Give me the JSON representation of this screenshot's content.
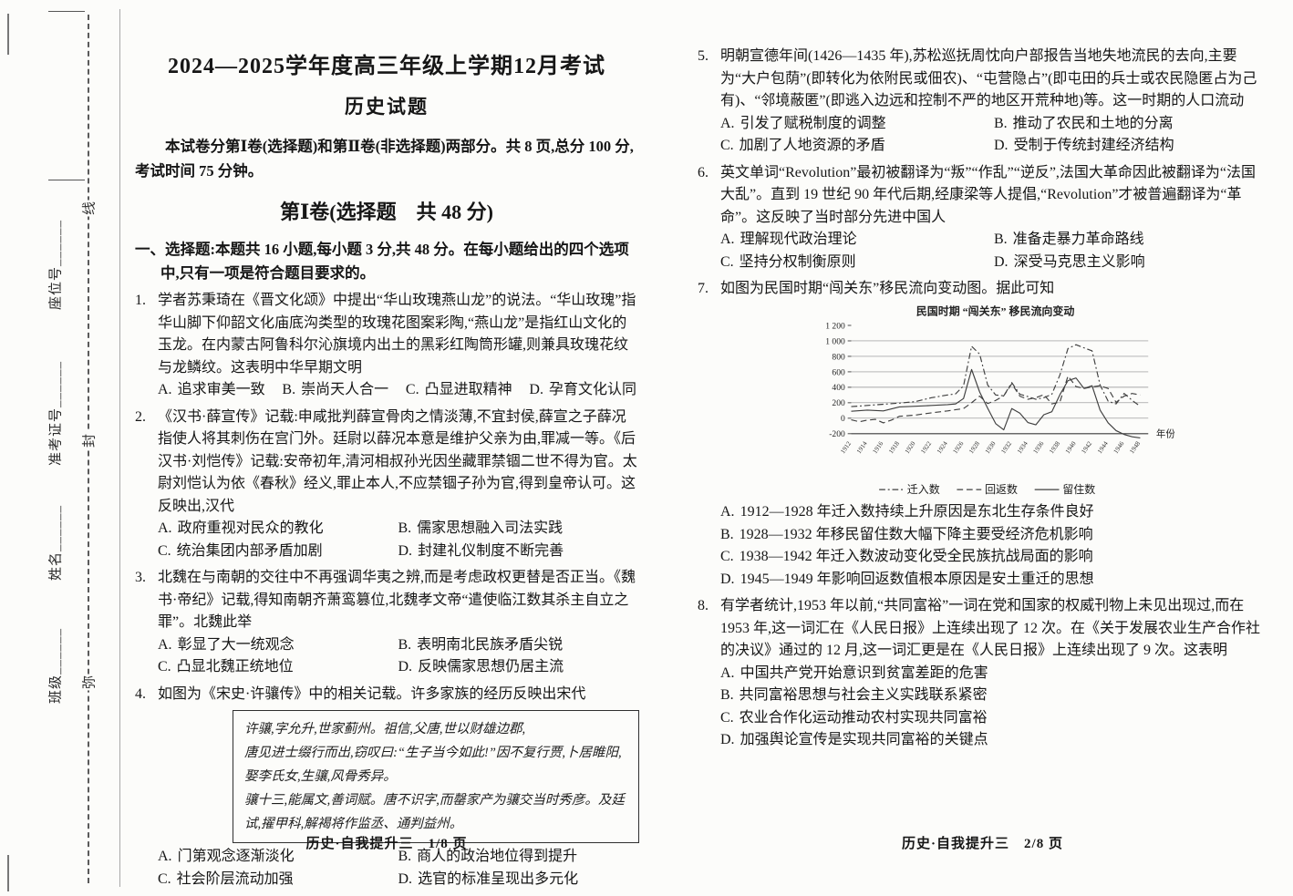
{
  "margin": {
    "seal_chars": [
      "线",
      "封",
      "弥"
    ],
    "fields": [
      "座位号______",
      "准考证号______",
      "姓名______",
      "班级______"
    ]
  },
  "page1": {
    "title_line1": "2024—2025学年度高三年级上学期12月考试",
    "title_line2": "历史试题",
    "intro": "本试卷分第Ⅰ卷(选择题)和第Ⅱ卷(非选择题)两部分。共 8 页,总分 100 分,考试时间 75 分钟。",
    "section_heading": "第Ⅰ卷(选择题　共 48 分)",
    "instructions": "一、选择题:本题共 16 小题,每小题 3 分,共 48 分。在每小题给出的四个选项中,只有一项是符合题目要求的。",
    "questions": [
      {
        "number": "1.",
        "stem": "学者苏秉琦在《晋文化颂》中提出“华山玫瑰燕山龙”的说法。“华山玫瑰”指华山脚下仰韶文化庙底沟类型的玫瑰花图案彩陶,“燕山龙”是指红山文化的玉龙。在内蒙古阿鲁科尔沁旗境内出土的黑彩红陶筒形罐,则兼具玫瑰花纹与龙鳞纹。这表明中华早期文明",
        "options": [
          {
            "label": "A.",
            "text": "追求审美一致"
          },
          {
            "label": "B.",
            "text": "崇尚天人合一"
          },
          {
            "label": "C.",
            "text": "凸显进取精神"
          },
          {
            "label": "D.",
            "text": "孕育文化认同"
          }
        ]
      },
      {
        "number": "2.",
        "stem": "《汉书·薛宣传》记载:申咸批判薛宣骨肉之情淡薄,不宜封侯,薛宣之子薛况指使人将其刺伤在宫门外。廷尉以薛况本意是维护父亲为由,罪减一等。《后汉书·刘恺传》记载:安帝初年,清河相叔孙光因坐藏罪禁锢二世不得为官。太尉刘恺认为依《春秋》经义,罪止本人,不应禁锢子孙为官,得到皇帝认可。这反映出,汉代",
        "options": [
          {
            "label": "A.",
            "text": "政府重视对民众的教化"
          },
          {
            "label": "B.",
            "text": "儒家思想融入司法实践"
          },
          {
            "label": "C.",
            "text": "统治集团内部矛盾加剧"
          },
          {
            "label": "D.",
            "text": "封建礼仪制度不断完善"
          }
        ]
      },
      {
        "number": "3.",
        "stem": "北魏在与南朝的交往中不再强调华夷之辨,而是考虑政权更替是否正当。《魏书·帝纪》记载,得知南朝齐萧鸾篡位,北魏孝文帝“遣使临江数其杀主自立之罪”。北魏此举",
        "options": [
          {
            "label": "A.",
            "text": "彰显了大一统观念"
          },
          {
            "label": "B.",
            "text": "表明南北民族矛盾尖锐"
          },
          {
            "label": "C.",
            "text": "凸显北魏正统地位"
          },
          {
            "label": "D.",
            "text": "反映儒家思想仍居主流"
          }
        ]
      },
      {
        "number": "4.",
        "stem": "如图为《宋史·许骧传》中的相关记载。许多家族的经历反映出宋代",
        "box_lines": [
          "许骧,字允升,世家蓟州。祖信,父唐,世以财雄边郡,",
          "唐见进士缀行而出,窃叹曰:“生子当今如此!”因不复行贾,卜居睢阳,",
          "娶李氏女,生骧,风骨秀异。",
          "骧十三,能属文,善词赋。唐不识字,而罄家产为骧交当时秀彦。及廷",
          "试,擢甲科,解褐将作监丞、通判益州。"
        ],
        "options": [
          {
            "label": "A.",
            "text": "门第观念逐渐淡化"
          },
          {
            "label": "B.",
            "text": "商人的政治地位得到提升"
          },
          {
            "label": "C.",
            "text": "社会阶层流动加强"
          },
          {
            "label": "D.",
            "text": "选官的标准呈现出多元化"
          }
        ]
      }
    ],
    "footer": "历史·自我提升三　1/8 页"
  },
  "page2": {
    "questions": [
      {
        "number": "5.",
        "stem": "明朝宣德年间(1426—1435 年),苏松巡抚周忱向户部报告当地失地流民的去向,主要为“大户包荫”(即转化为依附民或佃农)、“屯营隐占”(即屯田的兵士或农民隐匿占为己有)、“邻境蔽匿”(即逃入边远和控制不严的地区开荒种地)等。这一时期的人口流动",
        "options": [
          {
            "label": "A.",
            "text": "引发了赋税制度的调整"
          },
          {
            "label": "B.",
            "text": "推动了农民和土地的分离"
          },
          {
            "label": "C.",
            "text": "加剧了人地资源的矛盾"
          },
          {
            "label": "D.",
            "text": "受制于传统封建经济结构"
          }
        ]
      },
      {
        "number": "6.",
        "stem": "英文单词“Revolution”最初被翻译为“叛”“作乱”“逆反”,法国大革命因此被翻译为“法国大乱”。直到 19 世纪 90 年代后期,经康梁等人提倡,“Revolution”才被普遍翻译为“革命”。这反映了当时部分先进中国人",
        "options": [
          {
            "label": "A.",
            "text": "理解现代政治理论"
          },
          {
            "label": "B.",
            "text": "准备走暴力革命路线"
          },
          {
            "label": "C.",
            "text": "坚持分权制衡原则"
          },
          {
            "label": "D.",
            "text": "深受马克思主义影响"
          }
        ]
      },
      {
        "number": "7.",
        "stem": "如图为民国时期“闯关东”移民流向变动图。据此可知",
        "options": [
          {
            "label": "A.",
            "text": "1912—1928 年迁入数持续上升原因是东北生存条件良好"
          },
          {
            "label": "B.",
            "text": "1928—1932 年移民留住数大幅下降主要受经济危机影响"
          },
          {
            "label": "C.",
            "text": "1938—1942 年迁入数波动变化受全民族抗战局面的影响"
          },
          {
            "label": "D.",
            "text": "1945—1949 年影响回返数值根本原因是安土重迁的思想"
          }
        ]
      },
      {
        "number": "8.",
        "stem": "有学者统计,1953 年以前,“共同富裕”一词在党和国家的权威刊物上未见出现过,而在 1953 年,这一词汇在《人民日报》上连续出现了 12 次。在《关于发展农业生产合作社的决议》通过的 12 月,这一词汇更是在《人民日报》上连续出现了 9 次。这表明",
        "options": [
          {
            "label": "A.",
            "text": "中国共产党开始意识到贫富差距的危害"
          },
          {
            "label": "B.",
            "text": "共同富裕思想与社会主义实践联系紧密"
          },
          {
            "label": "C.",
            "text": "农业合作化运动推动农村实现共同富裕"
          },
          {
            "label": "D.",
            "text": "加强舆论宣传是实现共同富裕的关键点"
          }
        ]
      }
    ],
    "footer": "历史·自我提升三　2/8 页"
  },
  "chart_data": {
    "type": "line",
    "title": "民国时期 “闯关东” 移民流向变动",
    "xlabel": "年份",
    "ylabel": "",
    "x_min": 1912,
    "x_max": 1949,
    "ylim": [
      -200,
      1200
    ],
    "ytick_step": 200,
    "x_ticks": [
      1912,
      1914,
      1916,
      1918,
      1920,
      1922,
      1924,
      1926,
      1928,
      1930,
      1932,
      1934,
      1936,
      1938,
      1940,
      1942,
      1944,
      1946,
      1948
    ],
    "grid": true,
    "legend_position": "bottom",
    "series": [
      {
        "name": "迁入数",
        "style": "dashdot",
        "points": [
          [
            1912,
            150
          ],
          [
            1914,
            165
          ],
          [
            1916,
            180
          ],
          [
            1918,
            195
          ],
          [
            1920,
            215
          ],
          [
            1922,
            265
          ],
          [
            1924,
            300
          ],
          [
            1925,
            315
          ],
          [
            1926,
            420
          ],
          [
            1927,
            930
          ],
          [
            1928,
            830
          ],
          [
            1929,
            430
          ],
          [
            1930,
            300
          ],
          [
            1931,
            290
          ],
          [
            1932,
            460
          ],
          [
            1933,
            310
          ],
          [
            1934,
            280
          ],
          [
            1935,
            245
          ],
          [
            1936,
            265
          ],
          [
            1937,
            310
          ],
          [
            1938,
            560
          ],
          [
            1939,
            900
          ],
          [
            1940,
            950
          ],
          [
            1941,
            910
          ],
          [
            1942,
            870
          ],
          [
            1943,
            430
          ],
          [
            1944,
            220
          ],
          [
            1945,
            185
          ],
          [
            1946,
            320
          ],
          [
            1947,
            230
          ],
          [
            1948,
            155
          ]
        ]
      },
      {
        "name": "回返数",
        "style": "dashed",
        "points": [
          [
            1912,
            -20
          ],
          [
            1913,
            -45
          ],
          [
            1914,
            -25
          ],
          [
            1915,
            -15
          ],
          [
            1916,
            -60
          ],
          [
            1917,
            -25
          ],
          [
            1918,
            25
          ],
          [
            1920,
            40
          ],
          [
            1922,
            70
          ],
          [
            1924,
            95
          ],
          [
            1926,
            125
          ],
          [
            1927,
            200
          ],
          [
            1928,
            285
          ],
          [
            1929,
            190
          ],
          [
            1930,
            230
          ],
          [
            1931,
            290
          ],
          [
            1932,
            445
          ],
          [
            1933,
            285
          ],
          [
            1934,
            245
          ],
          [
            1935,
            265
          ],
          [
            1936,
            305
          ],
          [
            1937,
            185
          ],
          [
            1938,
            210
          ],
          [
            1939,
            545
          ],
          [
            1940,
            410
          ],
          [
            1941,
            385
          ],
          [
            1942,
            405
          ],
          [
            1943,
            420
          ],
          [
            1944,
            385
          ],
          [
            1945,
            205
          ],
          [
            1946,
            285
          ],
          [
            1947,
            320
          ],
          [
            1948,
            300
          ]
        ]
      },
      {
        "name": "留住数",
        "style": "solid",
        "points": [
          [
            1912,
            90
          ],
          [
            1914,
            105
          ],
          [
            1916,
            95
          ],
          [
            1918,
            145
          ],
          [
            1920,
            155
          ],
          [
            1922,
            165
          ],
          [
            1924,
            175
          ],
          [
            1925,
            185
          ],
          [
            1926,
            255
          ],
          [
            1927,
            630
          ],
          [
            1928,
            340
          ],
          [
            1929,
            130
          ],
          [
            1930,
            -70
          ],
          [
            1931,
            -150
          ],
          [
            1932,
            125
          ],
          [
            1933,
            65
          ],
          [
            1934,
            -55
          ],
          [
            1935,
            -85
          ],
          [
            1936,
            45
          ],
          [
            1937,
            85
          ],
          [
            1938,
            305
          ],
          [
            1939,
            485
          ],
          [
            1940,
            520
          ],
          [
            1941,
            385
          ],
          [
            1942,
            420
          ],
          [
            1943,
            105
          ],
          [
            1944,
            -60
          ],
          [
            1945,
            -160
          ],
          [
            1946,
            -210
          ],
          [
            1947,
            -240
          ],
          [
            1948,
            -255
          ]
        ]
      }
    ]
  }
}
